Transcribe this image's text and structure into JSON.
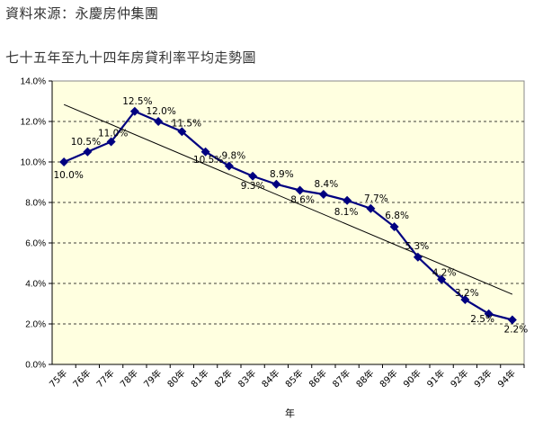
{
  "source_text": "資料來源：永慶房仲集團",
  "chart_data": {
    "type": "line",
    "title": "七十五年至九十四年房貸利率平均走勢圖",
    "xlabel": "年",
    "ylabel": "",
    "categories": [
      "75年",
      "76年",
      "77年",
      "78年",
      "79年",
      "80年",
      "81年",
      "82年",
      "83年",
      "84年",
      "85年",
      "86年",
      "87年",
      "88年",
      "89年",
      "90年",
      "91年",
      "92年",
      "93年",
      "94年"
    ],
    "y_ticks": [
      "0.0%",
      "2.0%",
      "4.0%",
      "6.0%",
      "8.0%",
      "10.0%",
      "12.0%",
      "14.0%"
    ],
    "ylim": [
      0,
      14
    ],
    "grid": true,
    "series": [
      {
        "values": [
          10.0,
          10.5,
          11.0,
          12.5,
          12.0,
          11.5,
          10.5,
          9.8,
          9.3,
          8.9,
          8.6,
          8.4,
          8.1,
          7.7,
          6.8,
          5.3,
          4.2,
          3.2,
          2.5,
          2.2
        ],
        "labels": [
          "10.0%",
          "10.5%",
          "11.0%",
          "12.5%",
          "12.0%",
          "11.5%",
          "10.5%",
          "9.8%",
          "9.3%",
          "8.9%",
          "8.6%",
          "8.4%",
          "8.1%",
          "7.7%",
          "6.8%",
          "5.3%",
          "4.2%",
          "3.2%",
          "2.5%",
          "2.2%"
        ]
      }
    ],
    "trendline": {
      "type": "linear"
    },
    "colors": {
      "plot_bg": "#ffffe0",
      "series": "#000080",
      "trend": "#000000",
      "grid": "#000000"
    }
  }
}
